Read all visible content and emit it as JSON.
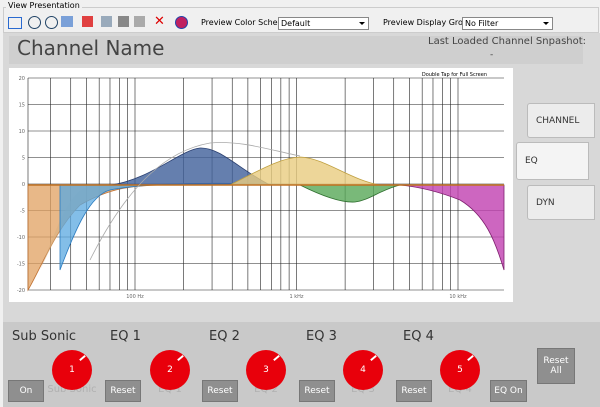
{
  "window": {
    "group_title": "View Presentation"
  },
  "toolbar": {
    "color_schema_label": "Preview Color Schema:",
    "color_schema_value": "Default",
    "display_group_label": "Preview Display Group:",
    "display_group_value": "No Filter"
  },
  "header": {
    "title": "Channel Name",
    "snapshot_label": "Last Loaded Channel Snpashot:",
    "snapshot_value": "-"
  },
  "graph": {
    "hint": "Double Tap for Full Screen",
    "y_labels": [
      "20",
      "15",
      "10",
      "5",
      "0",
      "-5",
      "-10",
      "-15",
      "-20"
    ],
    "x_labels": [
      "100 Hz",
      "1 kHz",
      "10 kHz"
    ]
  },
  "tabs": [
    "CHANNEL",
    "EQ",
    "DYN"
  ],
  "bands": [
    {
      "title": "Sub Sonic",
      "knob": "1",
      "caption": "Sub Sonic",
      "button": "On"
    },
    {
      "title": "EQ 1",
      "knob": "2",
      "caption": "EQ 1",
      "button": "Reset"
    },
    {
      "title": "EQ 2",
      "knob": "3",
      "caption": "EQ 2",
      "button": "Reset"
    },
    {
      "title": "EQ 3",
      "knob": "4",
      "caption": "EQ 3",
      "button": "Reset"
    },
    {
      "title": "EQ 4",
      "knob": "5",
      "caption": "EQ 4",
      "button": "Reset"
    }
  ],
  "extra_buttons": {
    "eq_on": "EQ On",
    "reset_all": "Reset All"
  }
}
